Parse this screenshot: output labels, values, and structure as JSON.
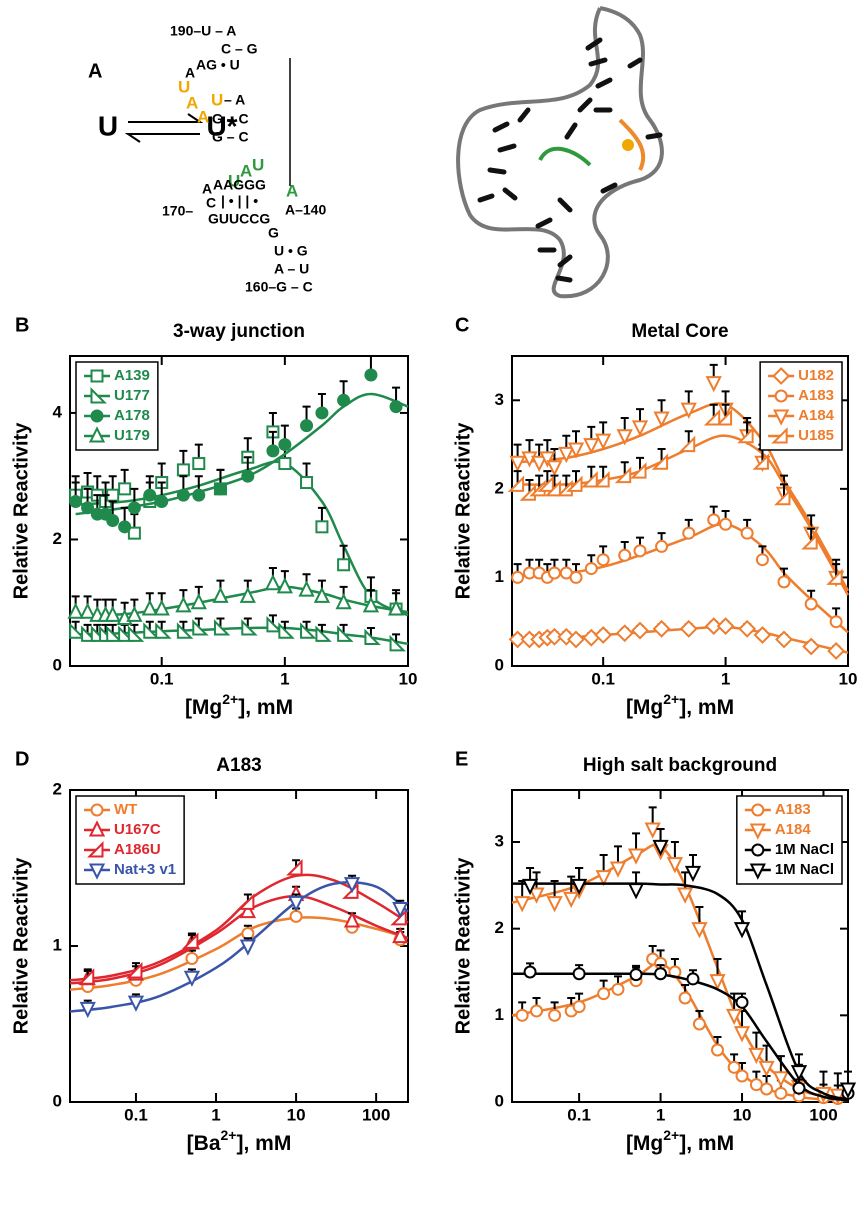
{
  "panel_a": {
    "label": "A",
    "equilibrium": [
      "U",
      "U*"
    ],
    "structure": [
      {
        "text": "190–U – A"
      },
      {
        "text": "C – G"
      },
      {
        "text": "A"
      },
      {
        "text": "AG • U"
      },
      {
        "text": "U",
        "color": "#f0a800"
      },
      {
        "text": "A",
        "color": "#f0a800"
      },
      {
        "text": "A",
        "color": "#f0a800"
      },
      {
        "text": "U",
        "color": "#f0a800"
      },
      {
        "text": "– A"
      },
      {
        "text": "G – C"
      },
      {
        "text": "G – C"
      },
      {
        "text": "U",
        "color": "#2e9a3e"
      },
      {
        "text": "A",
        "color": "#2e9a3e"
      },
      {
        "text": "U",
        "color": "#2e9a3e"
      },
      {
        "text": "A"
      },
      {
        "text": "AAGGG"
      },
      {
        "text": "C"
      },
      {
        "text": "| • | | •"
      },
      {
        "text": "170–"
      },
      {
        "text": "GUUCCG"
      },
      {
        "text": "A",
        "color": "#2e9a3e"
      },
      {
        "text": "A–140"
      },
      {
        "text": "G"
      },
      {
        "text": "U • G"
      },
      {
        "text": "A – U"
      },
      {
        "text": "160–G – C"
      }
    ]
  },
  "chart_data": [
    {
      "type": "scatter",
      "panel": "B",
      "title": "3-way junction",
      "x_label": [
        "[Mg",
        "2+",
        "], mM"
      ],
      "y_label": "Relative Reactivity",
      "log_x": true,
      "xlim": [
        0.018,
        10
      ],
      "xticks": [
        0.1,
        1,
        10
      ],
      "ylim": [
        0,
        4.9
      ],
      "yticks": [
        0,
        2,
        4
      ],
      "legend": "upper left",
      "x": [
        0.02,
        0.025,
        0.03,
        0.035,
        0.04,
        0.05,
        0.06,
        0.08,
        0.1,
        0.15,
        0.2,
        0.3,
        0.5,
        0.8,
        1,
        1.5,
        2,
        3,
        5,
        8
      ],
      "fit_x": [
        0.02,
        0.05,
        0.1,
        0.2,
        0.5,
        1,
        2,
        3,
        5,
        10
      ],
      "series": [
        {
          "name": "A139",
          "color": "#1f8a4c",
          "marker": "square",
          "filled": false,
          "error": 0.3,
          "values": [
            2.7,
            2.75,
            2.7,
            2.6,
            2.7,
            2.8,
            2.1,
            2.6,
            2.9,
            3.1,
            3.2,
            2.8,
            3.3,
            3.7,
            3.2,
            2.9,
            2.2,
            1.6,
            1.1,
            0.9
          ],
          "fit": [
            2.55,
            2.6,
            2.7,
            2.85,
            3.1,
            3.2,
            2.6,
            1.9,
            1.1,
            0.8
          ]
        },
        {
          "name": "U177",
          "color": "#1f8a4c",
          "marker": "tri-right",
          "filled": false,
          "error": 0.15,
          "values": [
            0.55,
            0.5,
            0.5,
            0.5,
            0.5,
            0.5,
            0.5,
            0.55,
            0.55,
            0.55,
            0.6,
            0.6,
            0.6,
            0.65,
            0.55,
            0.55,
            0.5,
            0.5,
            0.45,
            0.35
          ],
          "fit": [
            0.5,
            0.52,
            0.55,
            0.57,
            0.6,
            0.6,
            0.55,
            0.5,
            0.45,
            0.35
          ]
        },
        {
          "name": "A178",
          "color": "#1f8a4c",
          "marker": "circle",
          "filled": true,
          "error": 0.3,
          "values": [
            2.6,
            2.5,
            2.4,
            2.4,
            2.3,
            2.2,
            2.5,
            2.7,
            2.6,
            2.7,
            2.7,
            2.8,
            3.0,
            3.4,
            3.5,
            3.8,
            4.0,
            4.2,
            4.6,
            4.1
          ],
          "fit": [
            2.4,
            2.5,
            2.6,
            2.75,
            3.0,
            3.35,
            3.8,
            4.1,
            4.3,
            4.1
          ]
        },
        {
          "name": "U179",
          "color": "#1f8a4c",
          "marker": "tri-up",
          "filled": false,
          "error": 0.25,
          "values": [
            0.85,
            0.85,
            0.8,
            0.8,
            0.8,
            0.75,
            0.8,
            0.9,
            0.9,
            0.95,
            1.0,
            1.1,
            1.1,
            1.3,
            1.25,
            1.2,
            1.1,
            1.0,
            0.95,
            0.9
          ],
          "fit": [
            0.8,
            0.82,
            0.9,
            1.0,
            1.15,
            1.25,
            1.15,
            1.05,
            0.95,
            0.85
          ]
        }
      ]
    },
    {
      "type": "scatter",
      "panel": "C",
      "title": "Metal Core",
      "x_label": [
        "[Mg",
        "2+",
        "], mM"
      ],
      "y_label": "Relative Reactivity",
      "log_x": true,
      "xlim": [
        0.018,
        10
      ],
      "xticks": [
        0.1,
        1,
        10
      ],
      "ylim": [
        0,
        3.5
      ],
      "yticks": [
        0,
        1,
        2,
        3
      ],
      "legend": "upper right",
      "x": [
        0.02,
        0.025,
        0.03,
        0.035,
        0.04,
        0.05,
        0.06,
        0.08,
        0.1,
        0.15,
        0.2,
        0.3,
        0.5,
        0.8,
        1,
        1.5,
        2,
        3,
        5,
        8
      ],
      "fit_x": [
        0.02,
        0.05,
        0.1,
        0.2,
        0.5,
        1,
        2,
        3,
        5,
        10
      ],
      "series": [
        {
          "name": "U182",
          "color": "#ee7d2e",
          "marker": "diamond",
          "filled": false,
          "error": 0.05,
          "values": [
            0.3,
            0.3,
            0.3,
            0.32,
            0.33,
            0.33,
            0.3,
            0.32,
            0.35,
            0.37,
            0.4,
            0.42,
            0.42,
            0.45,
            0.45,
            0.42,
            0.35,
            0.3,
            0.22,
            0.17
          ],
          "fit": [
            0.3,
            0.32,
            0.35,
            0.38,
            0.42,
            0.44,
            0.38,
            0.32,
            0.25,
            0.15
          ]
        },
        {
          "name": "A183",
          "color": "#ee7d2e",
          "marker": "circle",
          "filled": false,
          "error": 0.15,
          "values": [
            1.0,
            1.05,
            1.05,
            1.0,
            1.05,
            1.05,
            1.0,
            1.1,
            1.2,
            1.25,
            1.3,
            1.35,
            1.5,
            1.65,
            1.6,
            1.5,
            1.2,
            0.95,
            0.7,
            0.5
          ],
          "fit": [
            1.02,
            1.05,
            1.12,
            1.25,
            1.45,
            1.6,
            1.35,
            1.05,
            0.75,
            0.38
          ]
        },
        {
          "name": "A184",
          "color": "#ee7d2e",
          "marker": "tri-down",
          "filled": false,
          "error": 0.2,
          "values": [
            2.3,
            2.35,
            2.3,
            2.35,
            2.25,
            2.4,
            2.45,
            2.5,
            2.55,
            2.6,
            2.7,
            2.8,
            2.9,
            3.2,
            2.9,
            2.6,
            2.3,
            1.95,
            1.5,
            1.0
          ],
          "fit": [
            2.3,
            2.35,
            2.45,
            2.6,
            2.85,
            2.95,
            2.55,
            2.1,
            1.6,
            0.85
          ]
        },
        {
          "name": "U185",
          "color": "#ee7d2e",
          "marker": "tri-left",
          "filled": false,
          "error": 0.15,
          "values": [
            2.05,
            1.95,
            2.0,
            2.05,
            2.0,
            2.0,
            2.05,
            2.1,
            2.1,
            2.15,
            2.2,
            2.3,
            2.5,
            2.8,
            2.8,
            2.6,
            2.3,
            1.9,
            1.4,
            1.0
          ],
          "fit": [
            2.05,
            2.05,
            2.1,
            2.2,
            2.45,
            2.6,
            2.4,
            2.05,
            1.55,
            0.8
          ]
        }
      ]
    },
    {
      "type": "scatter",
      "panel": "D",
      "title": "A183",
      "x_label": [
        "[Ba",
        "2+",
        "], mM"
      ],
      "y_label": "Relative Reactivity",
      "log_x": true,
      "xlim": [
        0.015,
        250
      ],
      "xticks": [
        0.1,
        1,
        10,
        100
      ],
      "ylim": [
        0,
        2
      ],
      "yticks": [
        0,
        1,
        2
      ],
      "legend": "upper left",
      "x": [
        0.025,
        0.1,
        0.5,
        2.5,
        10,
        50,
        200
      ],
      "fit_x": [
        0.015,
        0.05,
        0.2,
        1,
        3,
        10,
        30,
        100,
        250
      ],
      "series": [
        {
          "name": "WT",
          "color": "#ee7d2e",
          "marker": "circle",
          "filled": false,
          "error": 0.05,
          "values": [
            0.74,
            0.78,
            0.92,
            1.08,
            1.19,
            1.12,
            1.04
          ],
          "fit": [
            0.72,
            0.75,
            0.82,
            0.98,
            1.12,
            1.18,
            1.17,
            1.11,
            1.05
          ]
        },
        {
          "name": "U167C",
          "color": "#e0262e",
          "marker": "tri-up",
          "filled": false,
          "error": 0.05,
          "values": [
            0.79,
            0.82,
            1.02,
            1.22,
            1.33,
            1.16,
            1.06
          ],
          "fit": [
            0.76,
            0.79,
            0.88,
            1.08,
            1.25,
            1.32,
            1.25,
            1.13,
            1.05
          ]
        },
        {
          "name": "A186U",
          "color": "#e0262e",
          "marker": "tri-left",
          "filled": false,
          "error": 0.05,
          "values": [
            0.8,
            0.84,
            1.03,
            1.28,
            1.5,
            1.35,
            1.18
          ],
          "fit": [
            0.78,
            0.81,
            0.9,
            1.1,
            1.32,
            1.45,
            1.42,
            1.28,
            1.15
          ]
        },
        {
          "name": "Nat+3 v1",
          "color": "#3a55a8",
          "marker": "tri-down",
          "filled": false,
          "error": 0.05,
          "values": [
            0.6,
            0.64,
            0.8,
            1.0,
            1.28,
            1.4,
            1.24
          ],
          "fit": [
            0.58,
            0.61,
            0.68,
            0.86,
            1.05,
            1.28,
            1.4,
            1.38,
            1.22
          ]
        }
      ]
    },
    {
      "type": "scatter",
      "panel": "E",
      "title": "High salt background",
      "x_label": [
        "[Mg",
        "2+",
        "], mM"
      ],
      "y_label": "Relative Reactivity",
      "log_x": true,
      "xlim": [
        0.015,
        200
      ],
      "xticks": [
        0.1,
        1,
        10,
        100
      ],
      "ylim": [
        0,
        3.6
      ],
      "yticks": [
        0,
        1,
        2,
        3
      ],
      "legend": "upper right",
      "fit_x": [
        0.015,
        0.1,
        0.5,
        1,
        2,
        5,
        10,
        20,
        50,
        100,
        200
      ],
      "series": [
        {
          "name": "A183",
          "color": "#ee7d2e",
          "marker": "circle",
          "filled": false,
          "error": 0.15,
          "x": [
            0.02,
            0.03,
            0.05,
            0.08,
            0.1,
            0.2,
            0.3,
            0.5,
            0.8,
            1,
            1.5,
            2,
            3,
            5,
            8,
            10,
            15,
            20,
            30,
            50,
            100,
            150
          ],
          "values": [
            1.0,
            1.05,
            1.0,
            1.05,
            1.1,
            1.25,
            1.3,
            1.4,
            1.65,
            1.6,
            1.5,
            1.2,
            0.9,
            0.6,
            0.4,
            0.3,
            0.2,
            0.15,
            0.1,
            0.07,
            0.05,
            0.04
          ],
          "fit": [
            1.0,
            1.15,
            1.45,
            1.6,
            1.3,
            0.65,
            0.32,
            0.15,
            0.06,
            0.03,
            0.02
          ]
        },
        {
          "name": "A184",
          "color": "#ee7d2e",
          "marker": "tri-down",
          "filled": false,
          "error": 0.25,
          "x": [
            0.02,
            0.03,
            0.05,
            0.08,
            0.1,
            0.2,
            0.3,
            0.5,
            0.8,
            1,
            1.5,
            2,
            3,
            5,
            8,
            10,
            15,
            20,
            30,
            50,
            100,
            150
          ],
          "values": [
            2.3,
            2.4,
            2.3,
            2.35,
            2.45,
            2.6,
            2.7,
            2.85,
            3.15,
            2.9,
            2.75,
            2.4,
            2.0,
            1.4,
            1.0,
            0.8,
            0.55,
            0.4,
            0.28,
            0.18,
            0.1,
            0.08
          ],
          "fit": [
            2.3,
            2.5,
            2.85,
            2.95,
            2.5,
            1.55,
            0.85,
            0.42,
            0.15,
            0.07,
            0.04
          ]
        },
        {
          "name": "1M NaCl",
          "color": "#000000",
          "marker": "circle",
          "filled": false,
          "error": 0.1,
          "x": [
            0.025,
            0.1,
            0.5,
            1,
            2.5,
            10,
            50,
            200
          ],
          "values": [
            1.5,
            1.48,
            1.47,
            1.48,
            1.42,
            1.15,
            0.16,
            0.1
          ],
          "fit": [
            1.48,
            1.48,
            1.48,
            1.47,
            1.42,
            1.3,
            1.1,
            0.7,
            0.2,
            0.06,
            0.02
          ]
        },
        {
          "name": "1M NaCl",
          "color": "#000000",
          "marker": "tri-down",
          "filled": false,
          "error": 0.2,
          "x": [
            0.025,
            0.1,
            0.5,
            1,
            2.5,
            10,
            50,
            200
          ],
          "values": [
            2.5,
            2.5,
            2.45,
            2.95,
            2.65,
            2.0,
            0.35,
            0.15
          ],
          "fit": [
            2.52,
            2.52,
            2.52,
            2.51,
            2.5,
            2.4,
            2.1,
            1.35,
            0.35,
            0.1,
            0.03
          ]
        }
      ]
    }
  ]
}
